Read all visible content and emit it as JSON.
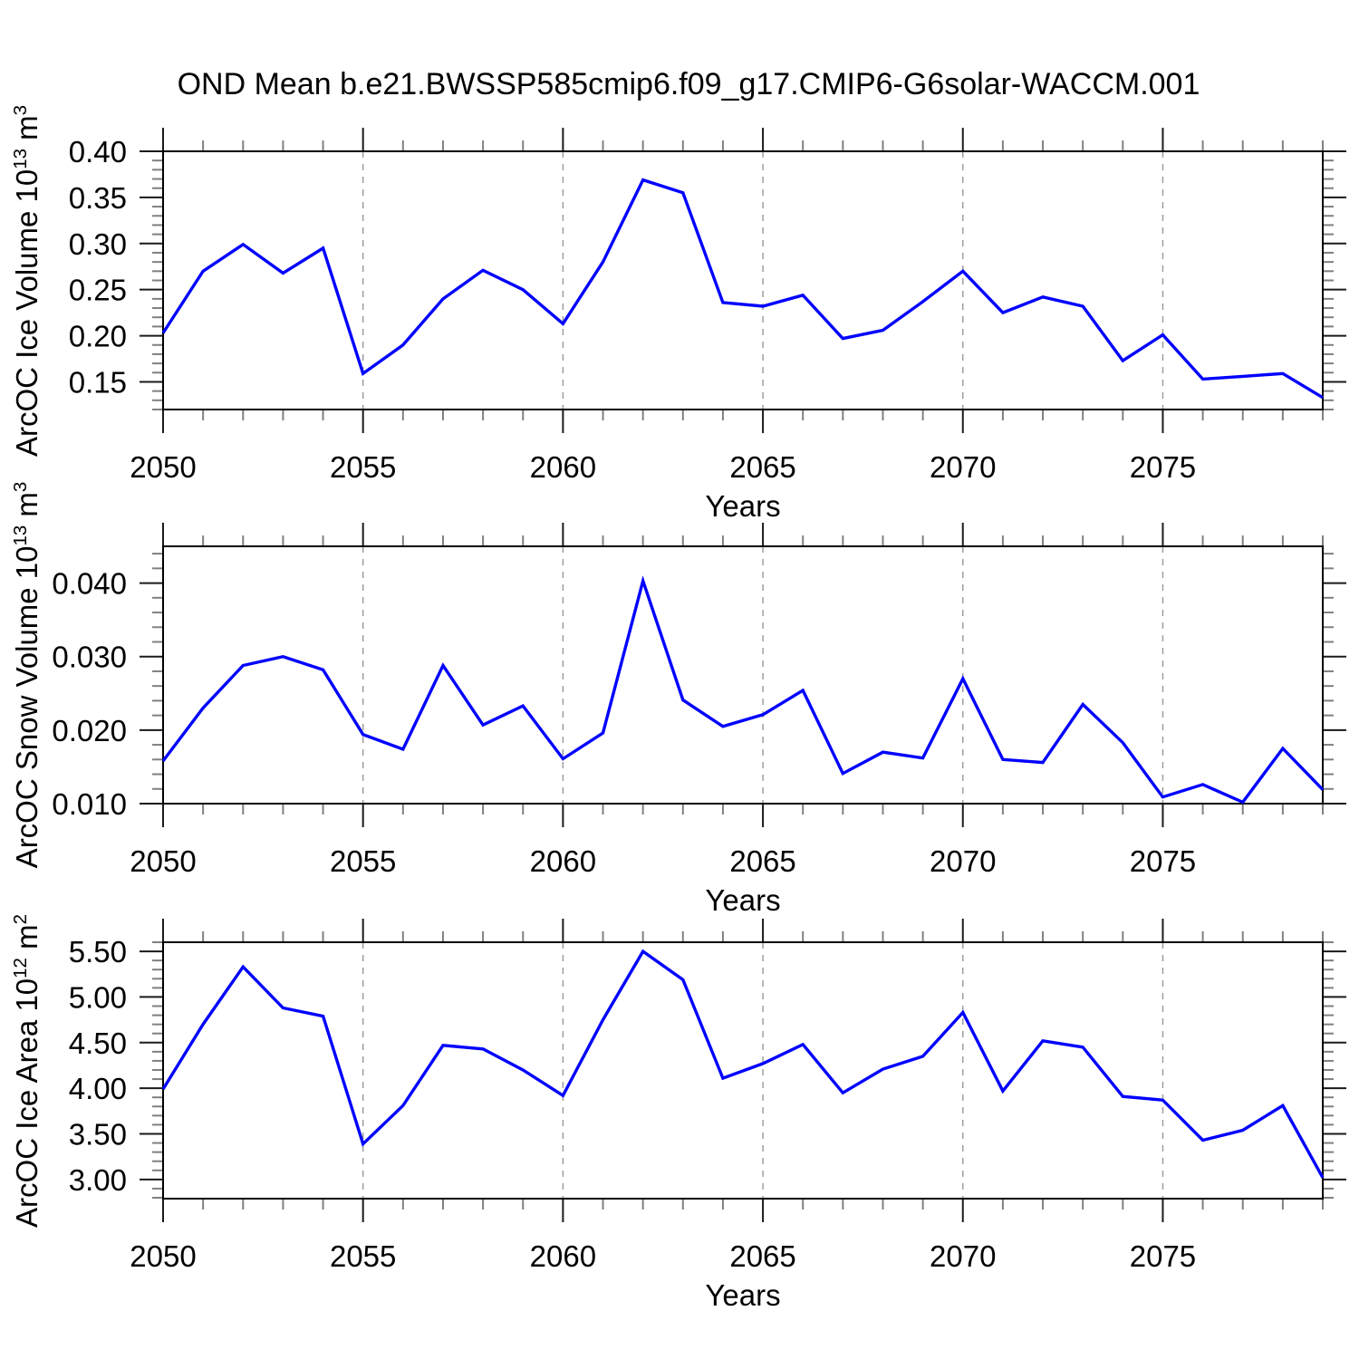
{
  "title": "OND Mean b.e21.BWSSP585cmip6.f09_g17.CMIP6-G6solar-WACCM.001",
  "line_color": "#0000ff",
  "grid_color": "#999999",
  "chart_data": [
    {
      "type": "line",
      "name": "ice-volume",
      "ylabel": {
        "pre": "ArcOC Ice Volume 10",
        "sup1": "13",
        "mid": " m",
        "sup2": "3"
      },
      "xlabel": "Years",
      "years": [
        2050,
        2051,
        2052,
        2053,
        2054,
        2055,
        2056,
        2057,
        2058,
        2059,
        2060,
        2061,
        2062,
        2063,
        2064,
        2065,
        2066,
        2067,
        2068,
        2069,
        2070,
        2071,
        2072,
        2073,
        2074,
        2075,
        2076,
        2077,
        2078,
        2079
      ],
      "values": [
        0.203,
        0.27,
        0.299,
        0.268,
        0.295,
        0.159,
        0.19,
        0.24,
        0.271,
        0.25,
        0.213,
        0.28,
        0.369,
        0.355,
        0.236,
        0.232,
        0.244,
        0.197,
        0.206,
        0.237,
        0.27,
        0.225,
        0.242,
        0.232,
        0.173,
        0.201,
        0.153,
        0.156,
        0.159,
        0.133
      ],
      "xlim": [
        2050,
        2079
      ],
      "ylim": [
        0.12,
        0.4
      ],
      "yticks": [
        0.15,
        0.2,
        0.25,
        0.3,
        0.35,
        0.4
      ],
      "ytick_labels": [
        "0.15",
        "0.20",
        "0.25",
        "0.30",
        "0.35",
        "0.40"
      ],
      "y_minor_step": 0.01,
      "xticks": [
        2050,
        2055,
        2060,
        2065,
        2070,
        2075
      ],
      "xtick_labels": [
        "2050",
        "2055",
        "2060",
        "2065",
        "2070",
        "2075"
      ],
      "x_minor_step": 1,
      "grid_x": [
        2055,
        2060,
        2065,
        2070,
        2075
      ],
      "grid_style": "dashed"
    },
    {
      "type": "line",
      "name": "snow-volume",
      "ylabel": {
        "pre": "ArcOC Snow Volume 10",
        "sup1": "13",
        "mid": " m",
        "sup2": "3"
      },
      "xlabel": "Years",
      "years": [
        2050,
        2051,
        2052,
        2053,
        2054,
        2055,
        2056,
        2057,
        2058,
        2059,
        2060,
        2061,
        2062,
        2063,
        2064,
        2065,
        2066,
        2067,
        2068,
        2069,
        2070,
        2071,
        2072,
        2073,
        2074,
        2075,
        2076,
        2077,
        2078,
        2079
      ],
      "values": [
        0.0158,
        0.023,
        0.0288,
        0.03,
        0.0282,
        0.0194,
        0.0174,
        0.0288,
        0.0207,
        0.0233,
        0.0161,
        0.0196,
        0.0403,
        0.0241,
        0.0205,
        0.0221,
        0.0254,
        0.0141,
        0.017,
        0.0162,
        0.027,
        0.016,
        0.0156,
        0.0235,
        0.0183,
        0.0109,
        0.0126,
        0.0102,
        0.0175,
        0.0119
      ],
      "xlim": [
        2050,
        2079
      ],
      "ylim": [
        0.01,
        0.045
      ],
      "yticks": [
        0.01,
        0.02,
        0.03,
        0.04
      ],
      "ytick_labels": [
        "0.010",
        "0.020",
        "0.030",
        "0.040"
      ],
      "y_minor_step": 0.002,
      "xticks": [
        2050,
        2055,
        2060,
        2065,
        2070,
        2075
      ],
      "xtick_labels": [
        "2050",
        "2055",
        "2060",
        "2065",
        "2070",
        "2075"
      ],
      "x_minor_step": 1,
      "grid_x": [
        2055,
        2060,
        2065,
        2070,
        2075
      ],
      "grid_style": "dashed"
    },
    {
      "type": "line",
      "name": "ice-area",
      "ylabel": {
        "pre": "ArcOC Ice Area 10",
        "sup1": "12",
        "mid": " m",
        "sup2": "2"
      },
      "xlabel": "Years",
      "years": [
        2050,
        2051,
        2052,
        2053,
        2054,
        2055,
        2056,
        2057,
        2058,
        2059,
        2060,
        2061,
        2062,
        2063,
        2064,
        2065,
        2066,
        2067,
        2068,
        2069,
        2070,
        2071,
        2072,
        2073,
        2074,
        2075,
        2076,
        2077,
        2078,
        2079
      ],
      "values": [
        3.99,
        4.7,
        5.33,
        4.88,
        4.79,
        3.39,
        3.81,
        4.47,
        4.43,
        4.2,
        3.92,
        4.75,
        5.5,
        5.19,
        4.11,
        4.27,
        4.48,
        3.95,
        4.21,
        4.35,
        4.83,
        3.97,
        4.52,
        4.45,
        3.91,
        3.87,
        3.43,
        3.54,
        3.81,
        3.02
      ],
      "xlim": [
        2050,
        2079
      ],
      "ylim": [
        2.79,
        5.6
      ],
      "yticks": [
        3.0,
        3.5,
        4.0,
        4.5,
        5.0,
        5.5
      ],
      "ytick_labels": [
        "3.00",
        "3.50",
        "4.00",
        "4.50",
        "5.00",
        "5.50"
      ],
      "y_minor_step": 0.1,
      "xticks": [
        2050,
        2055,
        2060,
        2065,
        2070,
        2075
      ],
      "xtick_labels": [
        "2050",
        "2055",
        "2060",
        "2065",
        "2070",
        "2075"
      ],
      "x_minor_step": 1,
      "grid_x": [
        2055,
        2060,
        2065,
        2070,
        2075
      ],
      "grid_style": "dashed"
    }
  ]
}
